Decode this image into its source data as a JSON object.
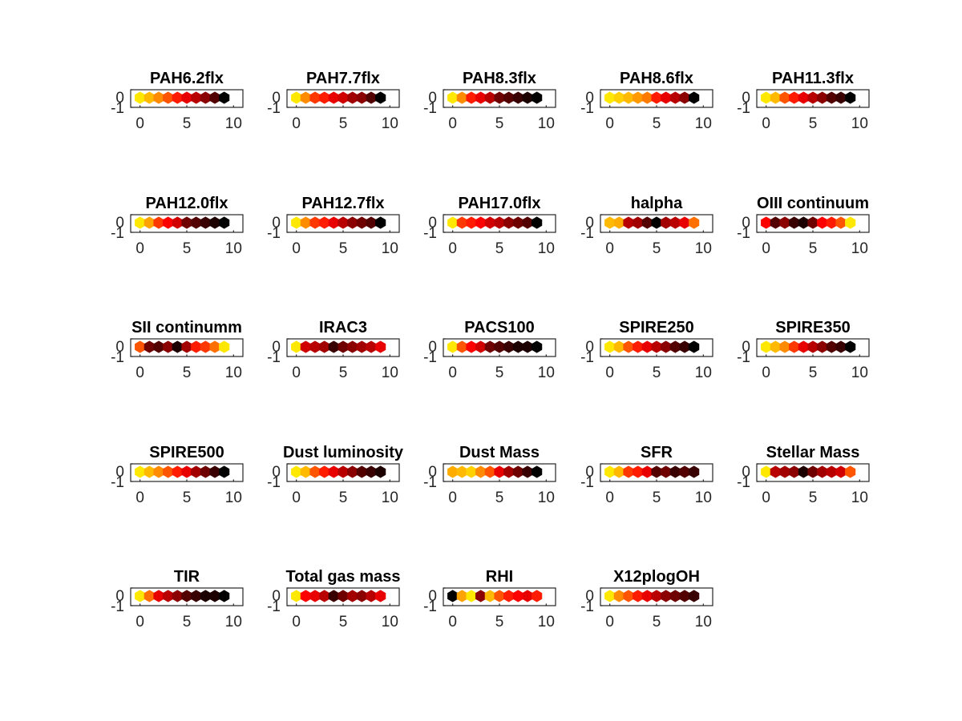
{
  "colormap": {
    "name": "hot",
    "color_stops": [
      "#000000",
      "#8b0000",
      "#ff0000",
      "#ff8c00",
      "#ffff00"
    ]
  },
  "chart_data": [
    {
      "type": "heatmap",
      "title": "PAH6.2flx",
      "x": [
        0,
        1,
        2,
        3,
        4,
        5,
        6,
        7,
        8,
        9
      ],
      "values": [
        0.95,
        0.85,
        0.75,
        0.65,
        0.55,
        0.45,
        0.35,
        0.25,
        0.15,
        0.0
      ],
      "xlim": [
        -1,
        11
      ],
      "ylim": [
        -1,
        0
      ],
      "x_ticks": [
        0,
        5,
        10
      ],
      "y_ticks": [
        0,
        -1
      ],
      "grid": false
    },
    {
      "type": "heatmap",
      "title": "PAH7.7flx",
      "x": [
        0,
        1,
        2,
        3,
        4,
        5,
        6,
        7,
        8,
        9
      ],
      "values": [
        0.95,
        0.75,
        0.6,
        0.55,
        0.45,
        0.4,
        0.3,
        0.25,
        0.15,
        0.0
      ],
      "xlim": [
        -1,
        11
      ],
      "ylim": [
        -1,
        0
      ],
      "x_ticks": [
        0,
        5,
        10
      ],
      "y_ticks": [
        0,
        -1
      ],
      "grid": false
    },
    {
      "type": "heatmap",
      "title": "PAH8.3flx",
      "x": [
        0,
        1,
        2,
        3,
        4,
        5,
        6,
        7,
        8,
        9
      ],
      "values": [
        0.95,
        0.75,
        0.55,
        0.45,
        0.35,
        0.2,
        0.15,
        0.1,
        0.05,
        0.0
      ],
      "xlim": [
        -1,
        11
      ],
      "ylim": [
        -1,
        0
      ],
      "x_ticks": [
        0,
        5,
        10
      ],
      "y_ticks": [
        0,
        -1
      ],
      "grid": false
    },
    {
      "type": "heatmap",
      "title": "PAH8.6flx",
      "x": [
        0,
        1,
        2,
        3,
        4,
        5,
        6,
        7,
        8,
        9
      ],
      "values": [
        0.95,
        0.9,
        0.85,
        0.78,
        0.72,
        0.55,
        0.45,
        0.35,
        0.25,
        0.0
      ],
      "xlim": [
        -1,
        11
      ],
      "ylim": [
        -1,
        0
      ],
      "x_ticks": [
        0,
        5,
        10
      ],
      "y_ticks": [
        0,
        -1
      ],
      "grid": false
    },
    {
      "type": "heatmap",
      "title": "PAH11.3flx",
      "x": [
        0,
        1,
        2,
        3,
        4,
        5,
        6,
        7,
        8,
        9
      ],
      "values": [
        0.95,
        0.85,
        0.65,
        0.55,
        0.45,
        0.35,
        0.25,
        0.15,
        0.1,
        0.0
      ],
      "xlim": [
        -1,
        11
      ],
      "ylim": [
        -1,
        0
      ],
      "x_ticks": [
        0,
        5,
        10
      ],
      "y_ticks": [
        0,
        -1
      ],
      "grid": false
    },
    {
      "type": "heatmap",
      "title": "PAH12.0flx",
      "x": [
        0,
        1,
        2,
        3,
        4,
        5,
        6,
        7,
        8,
        9
      ],
      "values": [
        0.95,
        0.8,
        0.6,
        0.5,
        0.4,
        0.2,
        0.15,
        0.1,
        0.05,
        0.0
      ],
      "xlim": [
        -1,
        11
      ],
      "ylim": [
        -1,
        0
      ],
      "x_ticks": [
        0,
        5,
        10
      ],
      "y_ticks": [
        0,
        -1
      ],
      "grid": false
    },
    {
      "type": "heatmap",
      "title": "PAH12.7flx",
      "x": [
        0,
        1,
        2,
        3,
        4,
        5,
        6,
        7,
        8,
        9
      ],
      "values": [
        0.95,
        0.75,
        0.6,
        0.55,
        0.45,
        0.35,
        0.25,
        0.2,
        0.15,
        0.0
      ],
      "xlim": [
        -1,
        11
      ],
      "ylim": [
        -1,
        0
      ],
      "x_ticks": [
        0,
        5,
        10
      ],
      "y_ticks": [
        0,
        -1
      ],
      "grid": false
    },
    {
      "type": "heatmap",
      "title": "PAH17.0flx",
      "x": [
        0,
        1,
        2,
        3,
        4,
        5,
        6,
        7,
        8,
        9
      ],
      "values": [
        0.95,
        0.6,
        0.55,
        0.5,
        0.4,
        0.35,
        0.25,
        0.2,
        0.15,
        0.0
      ],
      "xlim": [
        -1,
        11
      ],
      "ylim": [
        -1,
        0
      ],
      "x_ticks": [
        0,
        5,
        10
      ],
      "y_ticks": [
        0,
        -1
      ],
      "grid": false
    },
    {
      "type": "heatmap",
      "title": "halpha",
      "x": [
        0,
        1,
        2,
        3,
        4,
        5,
        6,
        7,
        8,
        9
      ],
      "values": [
        0.85,
        0.82,
        0.35,
        0.3,
        0.15,
        0.0,
        0.3,
        0.35,
        0.45,
        0.7
      ],
      "xlim": [
        -1,
        11
      ],
      "ylim": [
        -1,
        0
      ],
      "x_ticks": [
        0,
        5,
        10
      ],
      "y_ticks": [
        0,
        -1
      ],
      "grid": false
    },
    {
      "type": "heatmap",
      "title": "OIII continuum",
      "x": [
        0,
        1,
        2,
        3,
        4,
        5,
        6,
        7,
        8,
        9
      ],
      "values": [
        0.5,
        0.15,
        0.25,
        0.1,
        0.05,
        0.2,
        0.5,
        0.55,
        0.65,
        0.95
      ],
      "xlim": [
        -1,
        11
      ],
      "ylim": [
        -1,
        0
      ],
      "x_ticks": [
        0,
        5,
        10
      ],
      "y_ticks": [
        0,
        -1
      ],
      "grid": false
    },
    {
      "type": "heatmap",
      "title": "SII continumm",
      "x": [
        0,
        1,
        2,
        3,
        4,
        5,
        6,
        7,
        8,
        9
      ],
      "values": [
        0.65,
        0.2,
        0.15,
        0.25,
        0.05,
        0.3,
        0.55,
        0.6,
        0.7,
        0.95
      ],
      "xlim": [
        -1,
        11
      ],
      "ylim": [
        -1,
        0
      ],
      "x_ticks": [
        0,
        5,
        10
      ],
      "y_ticks": [
        0,
        -1
      ],
      "grid": false
    },
    {
      "type": "heatmap",
      "title": "IRAC3",
      "x": [
        0,
        1,
        2,
        3,
        4,
        5,
        6,
        7,
        8,
        9
      ],
      "values": [
        0.95,
        0.4,
        0.35,
        0.3,
        0.1,
        0.2,
        0.25,
        0.3,
        0.35,
        0.45
      ],
      "xlim": [
        -1,
        11
      ],
      "ylim": [
        -1,
        0
      ],
      "x_ticks": [
        0,
        5,
        10
      ],
      "y_ticks": [
        0,
        -1
      ],
      "grid": false
    },
    {
      "type": "heatmap",
      "title": "PACS100",
      "x": [
        0,
        1,
        2,
        3,
        4,
        5,
        6,
        7,
        8,
        9
      ],
      "values": [
        0.95,
        0.65,
        0.5,
        0.4,
        0.2,
        0.15,
        0.1,
        0.05,
        0.05,
        0.0
      ],
      "xlim": [
        -1,
        11
      ],
      "ylim": [
        -1,
        0
      ],
      "x_ticks": [
        0,
        5,
        10
      ],
      "y_ticks": [
        0,
        -1
      ],
      "grid": false
    },
    {
      "type": "heatmap",
      "title": "SPIRE250",
      "x": [
        0,
        1,
        2,
        3,
        4,
        5,
        6,
        7,
        8,
        9
      ],
      "values": [
        0.95,
        0.85,
        0.65,
        0.55,
        0.45,
        0.35,
        0.25,
        0.15,
        0.1,
        0.0
      ],
      "xlim": [
        -1,
        11
      ],
      "ylim": [
        -1,
        0
      ],
      "x_ticks": [
        0,
        5,
        10
      ],
      "y_ticks": [
        0,
        -1
      ],
      "grid": false
    },
    {
      "type": "heatmap",
      "title": "SPIRE350",
      "x": [
        0,
        1,
        2,
        3,
        4,
        5,
        6,
        7,
        8,
        9
      ],
      "values": [
        0.95,
        0.85,
        0.75,
        0.6,
        0.45,
        0.35,
        0.25,
        0.15,
        0.1,
        0.0
      ],
      "xlim": [
        -1,
        11
      ],
      "ylim": [
        -1,
        0
      ],
      "x_ticks": [
        0,
        5,
        10
      ],
      "y_ticks": [
        0,
        -1
      ],
      "grid": false
    },
    {
      "type": "heatmap",
      "title": "SPIRE500",
      "x": [
        0,
        1,
        2,
        3,
        4,
        5,
        6,
        7,
        8,
        9
      ],
      "values": [
        0.95,
        0.85,
        0.75,
        0.65,
        0.55,
        0.45,
        0.3,
        0.2,
        0.1,
        0.0
      ],
      "xlim": [
        -1,
        11
      ],
      "ylim": [
        -1,
        0
      ],
      "x_ticks": [
        0,
        5,
        10
      ],
      "y_ticks": [
        0,
        -1
      ],
      "grid": false
    },
    {
      "type": "heatmap",
      "title": "Dust luminosity",
      "x": [
        0,
        1,
        2,
        3,
        4,
        5,
        6,
        7,
        8,
        9
      ],
      "values": [
        0.95,
        0.85,
        0.65,
        0.55,
        0.45,
        0.35,
        0.25,
        0.15,
        0.1,
        0.05
      ],
      "xlim": [
        -1,
        11
      ],
      "ylim": [
        -1,
        0
      ],
      "x_ticks": [
        0,
        5,
        10
      ],
      "y_ticks": [
        0,
        -1
      ],
      "grid": false
    },
    {
      "type": "heatmap",
      "title": "Dust Mass",
      "x": [
        0,
        1,
        2,
        3,
        4,
        5,
        6,
        7,
        8,
        9
      ],
      "values": [
        0.82,
        0.85,
        0.9,
        0.75,
        0.65,
        0.45,
        0.3,
        0.2,
        0.1,
        0.0
      ],
      "xlim": [
        -1,
        11
      ],
      "ylim": [
        -1,
        0
      ],
      "x_ticks": [
        0,
        5,
        10
      ],
      "y_ticks": [
        0,
        -1
      ],
      "grid": false
    },
    {
      "type": "heatmap",
      "title": "SFR",
      "x": [
        0,
        1,
        2,
        3,
        4,
        5,
        6,
        7,
        8,
        9
      ],
      "values": [
        0.95,
        0.85,
        0.6,
        0.55,
        0.45,
        0.15,
        0.2,
        0.1,
        0.15,
        0.1
      ],
      "xlim": [
        -1,
        11
      ],
      "ylim": [
        -1,
        0
      ],
      "x_ticks": [
        0,
        5,
        10
      ],
      "y_ticks": [
        0,
        -1
      ],
      "grid": false
    },
    {
      "type": "heatmap",
      "title": "Stellar Mass",
      "x": [
        0,
        1,
        2,
        3,
        4,
        5,
        6,
        7,
        8,
        9
      ],
      "values": [
        0.95,
        0.35,
        0.3,
        0.25,
        0.05,
        0.2,
        0.3,
        0.35,
        0.4,
        0.65
      ],
      "xlim": [
        -1,
        11
      ],
      "ylim": [
        -1,
        0
      ],
      "x_ticks": [
        0,
        5,
        10
      ],
      "y_ticks": [
        0,
        -1
      ],
      "grid": false
    },
    {
      "type": "heatmap",
      "title": "TIR",
      "x": [
        0,
        1,
        2,
        3,
        4,
        5,
        6,
        7,
        8,
        9
      ],
      "values": [
        0.95,
        0.7,
        0.45,
        0.35,
        0.25,
        0.15,
        0.1,
        0.05,
        0.05,
        0.0
      ],
      "xlim": [
        -1,
        11
      ],
      "ylim": [
        -1,
        0
      ],
      "x_ticks": [
        0,
        5,
        10
      ],
      "y_ticks": [
        0,
        -1
      ],
      "grid": false
    },
    {
      "type": "heatmap",
      "title": "Total gas mass",
      "x": [
        0,
        1,
        2,
        3,
        4,
        5,
        6,
        7,
        8,
        9
      ],
      "values": [
        0.95,
        0.5,
        0.45,
        0.35,
        0.1,
        0.2,
        0.3,
        0.25,
        0.35,
        0.45
      ],
      "xlim": [
        -1,
        11
      ],
      "ylim": [
        -1,
        0
      ],
      "x_ticks": [
        0,
        5,
        10
      ],
      "y_ticks": [
        0,
        -1
      ],
      "grid": false
    },
    {
      "type": "heatmap",
      "title": "RHI",
      "x": [
        0,
        1,
        2,
        3,
        4,
        5,
        6,
        7,
        8,
        9
      ],
      "values": [
        0.0,
        0.8,
        0.95,
        0.25,
        0.85,
        0.65,
        0.55,
        0.5,
        0.45,
        0.55
      ],
      "xlim": [
        -1,
        11
      ],
      "ylim": [
        -1,
        0
      ],
      "x_ticks": [
        0,
        5,
        10
      ],
      "y_ticks": [
        0,
        -1
      ],
      "grid": false
    },
    {
      "type": "heatmap",
      "title": "X12plogOH",
      "x": [
        0,
        1,
        2,
        3,
        4,
        5,
        6,
        7,
        8,
        9
      ],
      "values": [
        0.95,
        0.75,
        0.65,
        0.55,
        0.45,
        0.35,
        0.25,
        0.2,
        0.15,
        0.1
      ],
      "xlim": [
        -1,
        11
      ],
      "ylim": [
        -1,
        0
      ],
      "x_ticks": [
        0,
        5,
        10
      ],
      "y_ticks": [
        0,
        -1
      ],
      "grid": false
    }
  ]
}
